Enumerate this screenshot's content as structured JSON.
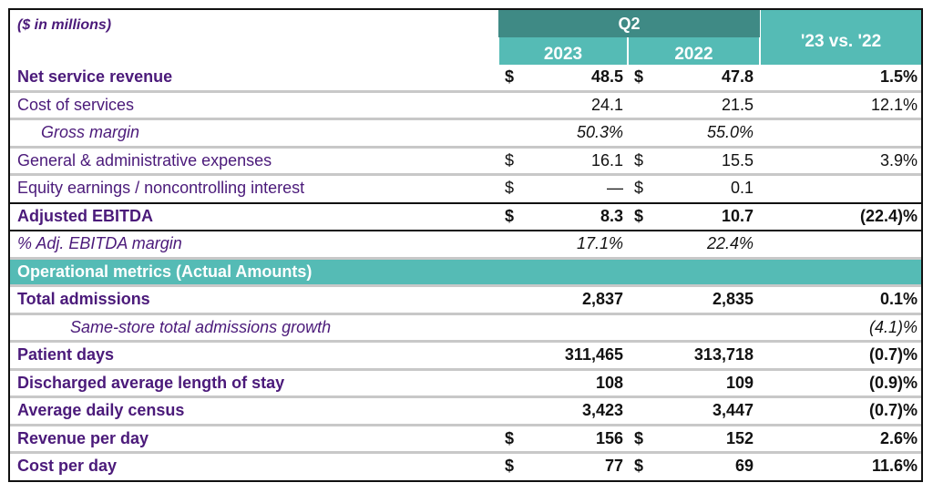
{
  "header": {
    "units": "($ in millions)",
    "period": "Q2",
    "years": [
      "2023",
      "2022"
    ],
    "comparison": "'23 vs. '22"
  },
  "colors": {
    "label_text": "#4B1A7A",
    "header_dark": "#3F8A85",
    "header_light": "#55BBB5",
    "divider": "#C8C8C8"
  },
  "rows": [
    {
      "label": "Net service revenue",
      "d1": "$",
      "v1": "48.5",
      "d2": "$",
      "v2": "47.8",
      "v3": "1.5%"
    },
    {
      "label": "Cost of services",
      "d1": "",
      "v1": "24.1",
      "d2": "",
      "v2": "21.5",
      "v3": "12.1%"
    },
    {
      "label": "Gross margin",
      "d1": "",
      "v1": "50.3%",
      "d2": "",
      "v2": "55.0%",
      "v3": ""
    },
    {
      "label": "General & administrative expenses",
      "d1": "$",
      "v1": "16.1",
      "d2": "$",
      "v2": "15.5",
      "v3": "3.9%"
    },
    {
      "label": "Equity earnings / noncontrolling interest",
      "d1": "$",
      "v1": "—",
      "d2": "$",
      "v2": "0.1",
      "v3": ""
    },
    {
      "label": "Adjusted EBITDA",
      "d1": "$",
      "v1": "8.3",
      "d2": "$",
      "v2": "10.7",
      "v3": "(22.4)%"
    },
    {
      "label": "%  Adj. EBITDA margin",
      "d1": "",
      "v1": "17.1%",
      "d2": "",
      "v2": "22.4%",
      "v3": ""
    },
    {
      "label": "Operational metrics (Actual Amounts)",
      "d1": "",
      "v1": "",
      "d2": "",
      "v2": "",
      "v3": ""
    },
    {
      "label": "Total admissions",
      "d1": "",
      "v1": "2,837",
      "d2": "",
      "v2": "2,835",
      "v3": "0.1%"
    },
    {
      "label": "Same-store total admissions growth",
      "d1": "",
      "v1": "",
      "d2": "",
      "v2": "",
      "v3": "(4.1)%"
    },
    {
      "label": "Patient days",
      "d1": "",
      "v1": "311,465",
      "d2": "",
      "v2": "313,718",
      "v3": "(0.7)%"
    },
    {
      "label": "Discharged average length of stay",
      "d1": "",
      "v1": "108",
      "d2": "",
      "v2": "109",
      "v3": "(0.9)%"
    },
    {
      "label": "Average daily census",
      "d1": "",
      "v1": "3,423",
      "d2": "",
      "v2": "3,447",
      "v3": "(0.7)%"
    },
    {
      "label": "Revenue per day",
      "d1": "$",
      "v1": "156",
      "d2": "$",
      "v2": "152",
      "v3": "2.6%"
    },
    {
      "label": "Cost per day",
      "d1": "$",
      "v1": "77",
      "d2": "$",
      "v2": "69",
      "v3": "11.6%"
    }
  ]
}
